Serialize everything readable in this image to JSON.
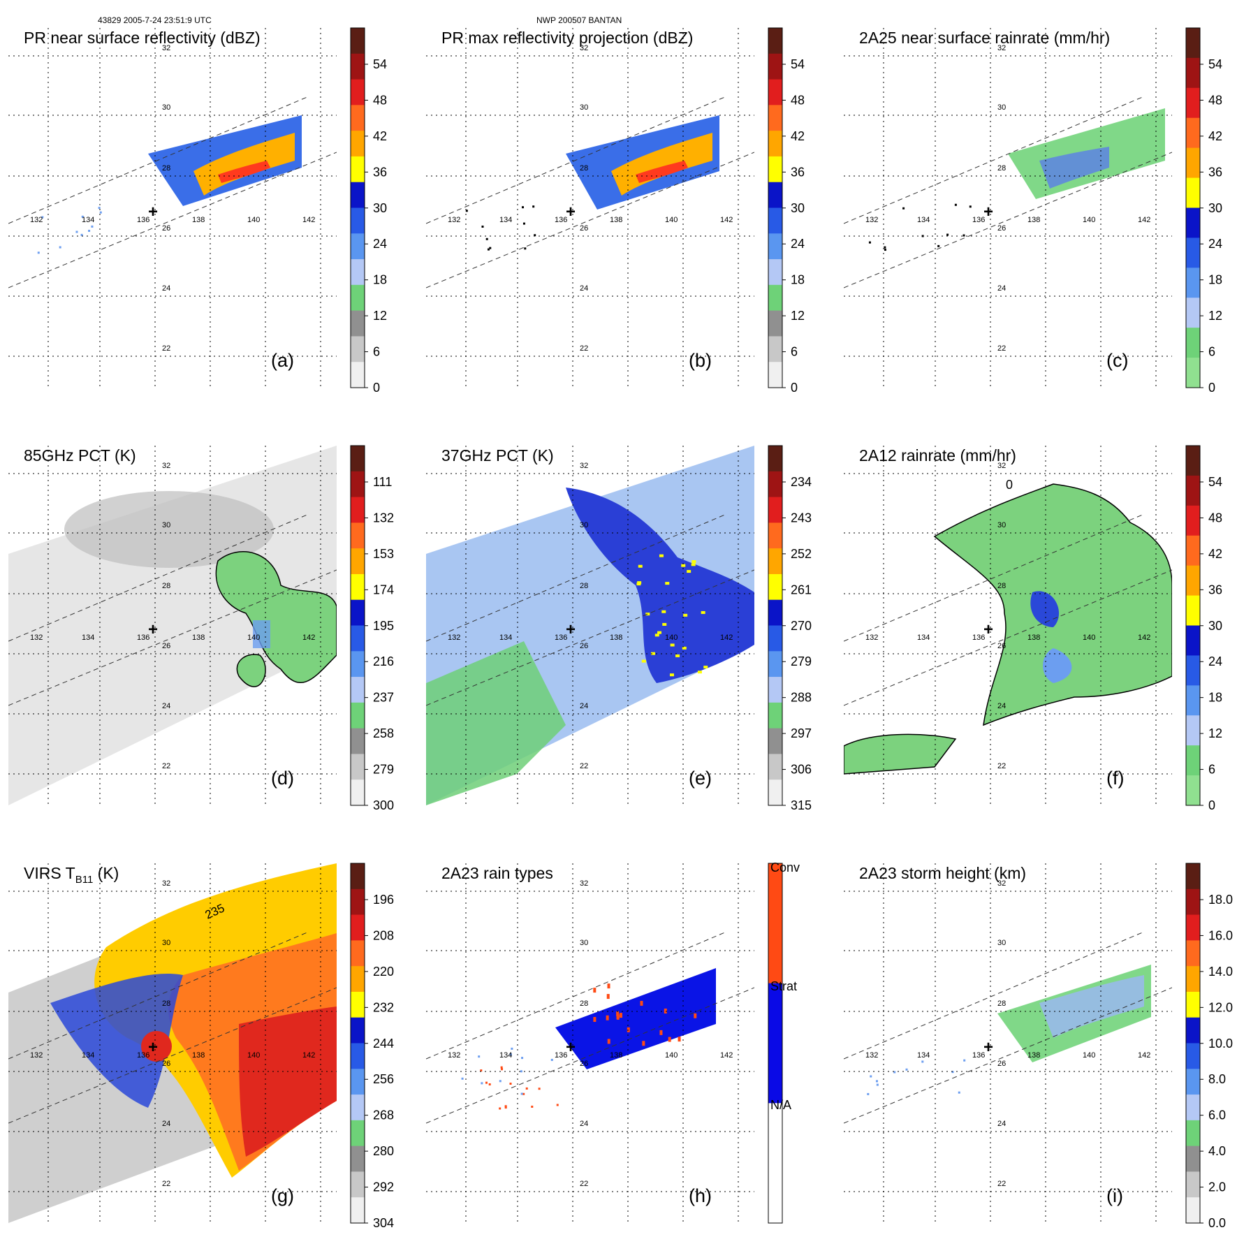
{
  "header": {
    "left": "43829 2005-7-24 23:51:9 UTC",
    "center": "NWP 200507 BANTAN"
  },
  "map": {
    "lon_labels": [
      "132",
      "134",
      "136",
      "138",
      "140",
      "142"
    ],
    "lat_labels": [
      "32",
      "30",
      "28",
      "26",
      "24",
      "22"
    ],
    "center_mark": "+"
  },
  "panels": [
    {
      "title": "PR near surface reflectivity (dBZ)",
      "label": "(a)",
      "kind": "pr_refl",
      "colorbar": {
        "ticks": [
          "54",
          "48",
          "42",
          "36",
          "30",
          "24",
          "18",
          "12",
          "6",
          "0"
        ],
        "colors": [
          "#5a1e14",
          "#9e1414",
          "#e11e1e",
          "#ff6a1e",
          "#ffa600",
          "#ffff00",
          "#0a14c8",
          "#285ae6",
          "#5a96f0",
          "#b4c8f5",
          "#6ed278",
          "#909090",
          "#c8c8c8",
          "#f0f0f0"
        ]
      }
    },
    {
      "title": "PR max reflectivity projection (dBZ)",
      "label": "(b)",
      "kind": "pr_max",
      "colorbar": {
        "ticks": [
          "54",
          "48",
          "42",
          "36",
          "30",
          "24",
          "18",
          "12",
          "6",
          "0"
        ],
        "colors": [
          "#5a1e14",
          "#9e1414",
          "#e11e1e",
          "#ff6a1e",
          "#ffa600",
          "#ffff00",
          "#0a14c8",
          "#285ae6",
          "#5a96f0",
          "#b4c8f5",
          "#6ed278",
          "#909090",
          "#c8c8c8",
          "#f0f0f0"
        ]
      }
    },
    {
      "title": "2A25 near surface rainrate (mm/hr)",
      "label": "(c)",
      "kind": "rainrate_pr",
      "colorbar": {
        "ticks": [
          "54",
          "48",
          "42",
          "36",
          "30",
          "24",
          "18",
          "12",
          "6",
          "0"
        ],
        "colors": [
          "#5a1e14",
          "#9e1414",
          "#e11e1e",
          "#ff6a1e",
          "#ffa600",
          "#ffff00",
          "#0a14c8",
          "#285ae6",
          "#5a96f0",
          "#b4c8f5",
          "#6ed278",
          "#90e090"
        ]
      }
    },
    {
      "title": "85GHz PCT (K)",
      "label": "(d)",
      "kind": "pct85",
      "colorbar": {
        "ticks": [
          "111",
          "132",
          "153",
          "174",
          "195",
          "216",
          "237",
          "258",
          "279",
          "300"
        ],
        "colors": [
          "#5a1e14",
          "#9e1414",
          "#e11e1e",
          "#ff6a1e",
          "#ffa600",
          "#ffff00",
          "#0a14c8",
          "#285ae6",
          "#5a96f0",
          "#b4c8f5",
          "#6ed278",
          "#909090",
          "#c8c8c8",
          "#f0f0f0"
        ]
      }
    },
    {
      "title": "37GHz PCT (K)",
      "label": "(e)",
      "kind": "pct37",
      "colorbar": {
        "ticks": [
          "234",
          "243",
          "252",
          "261",
          "270",
          "279",
          "288",
          "297",
          "306",
          "315"
        ],
        "colors": [
          "#5a1e14",
          "#9e1414",
          "#e11e1e",
          "#ff6a1e",
          "#ffa600",
          "#ffff00",
          "#0a14c8",
          "#285ae6",
          "#5a96f0",
          "#b4c8f5",
          "#6ed278",
          "#909090",
          "#c8c8c8",
          "#f0f0f0"
        ]
      }
    },
    {
      "title": "2A12 rainrate (mm/hr)",
      "label": "(f)",
      "kind": "rainrate_tmi",
      "contour_label": "0",
      "colorbar": {
        "ticks": [
          "54",
          "48",
          "42",
          "36",
          "30",
          "24",
          "18",
          "12",
          "6",
          "0"
        ],
        "colors": [
          "#5a1e14",
          "#9e1414",
          "#e11e1e",
          "#ff6a1e",
          "#ffa600",
          "#ffff00",
          "#0a14c8",
          "#285ae6",
          "#5a96f0",
          "#b4c8f5",
          "#6ed278",
          "#90e090"
        ]
      }
    },
    {
      "title": "VIRS T",
      "title_sub": "B11",
      "title_tail": " (K)",
      "label": "(g)",
      "kind": "virs",
      "contour_label": "235",
      "colorbar": {
        "ticks": [
          "196",
          "208",
          "220",
          "232",
          "244",
          "256",
          "268",
          "280",
          "292",
          "304"
        ],
        "colors": [
          "#5a1e14",
          "#9e1414",
          "#e11e1e",
          "#ff6a1e",
          "#ffa600",
          "#ffff00",
          "#0a14c8",
          "#285ae6",
          "#5a96f0",
          "#b4c8f5",
          "#6ed278",
          "#909090",
          "#c8c8c8",
          "#f0f0f0"
        ]
      }
    },
    {
      "title": "2A23 rain types",
      "label": "(h)",
      "kind": "raintype",
      "colorbar": {
        "ticks": [
          "Conv",
          "Strat",
          "N/A"
        ],
        "colors": [
          "#ff4a14",
          "#0a0ae6",
          "#ffffff"
        ]
      }
    },
    {
      "title": "2A23 storm height (km)",
      "label": "(i)",
      "kind": "height",
      "colorbar": {
        "ticks": [
          "18.0",
          "16.0",
          "14.0",
          "12.0",
          "10.0",
          "8.0",
          "6.0",
          "4.0",
          "2.0",
          "0.0"
        ],
        "colors": [
          "#5a1e14",
          "#9e1414",
          "#e11e1e",
          "#ff6a1e",
          "#ffa600",
          "#ffff00",
          "#0a14c8",
          "#285ae6",
          "#5a96f0",
          "#b4c8f5",
          "#6ed278",
          "#909090",
          "#c8c8c8",
          "#f0f0f0"
        ]
      }
    }
  ]
}
